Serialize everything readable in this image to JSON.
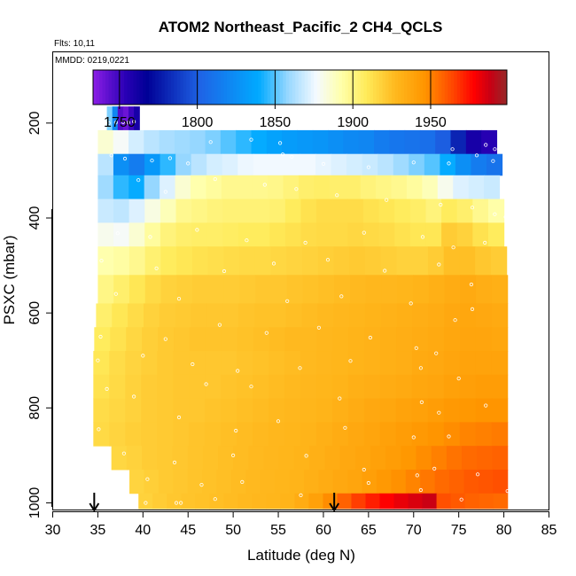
{
  "chart_data": {
    "type": "heatmap",
    "title": "ATOM2 Northeast_Pacific_2 CH4_QCLS",
    "info": {
      "flights": "Flts: 10,11",
      "dates": "MMDD: 0219,0221"
    },
    "xlabel": "Latitude (deg N)",
    "ylabel": "PSXC (mbar)",
    "xlim": [
      30,
      85
    ],
    "ylim": [
      1015,
      50
    ],
    "x_ticks": [
      "30",
      "35",
      "40",
      "45",
      "50",
      "55",
      "60",
      "65",
      "70",
      "75",
      "80",
      "85"
    ],
    "y_ticks": [
      "200",
      "400",
      "600",
      "800",
      "1000"
    ],
    "colorbar": {
      "range": [
        1733,
        1999
      ],
      "ticks": [
        "1750",
        "1800",
        "1850",
        "1900",
        "1950"
      ]
    },
    "markers": [
      {
        "latitude": 34.6,
        "label": "down-arrow"
      },
      {
        "latitude": 61.2,
        "label": "down-arrow"
      }
    ],
    "layers": [
      {
        "p_top": 165,
        "p_bot": 215,
        "lat_min": 36,
        "lat_max": 39.6,
        "values": [
          1855,
          1820,
          1745,
          1740,
          1750,
          1760
        ]
      },
      {
        "p_top": 215,
        "p_bot": 265,
        "lat_min": 35,
        "lat_max": 79.2,
        "values": [
          1885,
          1878,
          1870,
          1865,
          1862,
          1860,
          1858,
          1855,
          1850,
          1845,
          1840,
          1835,
          1832,
          1830,
          1828,
          1825,
          1822,
          1820,
          1815,
          1812,
          1810,
          1808,
          1800,
          1780,
          1760,
          1755
        ]
      },
      {
        "p_top": 265,
        "p_bot": 310,
        "lat_min": 35,
        "lat_max": 79.8,
        "values": [
          1865,
          1825,
          1815,
          1830,
          1845,
          1858,
          1865,
          1870,
          1872,
          1875,
          1876,
          1876,
          1876,
          1876,
          1874,
          1872,
          1870,
          1868,
          1865,
          1860,
          1855,
          1850,
          1840,
          1825,
          1815,
          1810
        ]
      },
      {
        "p_top": 310,
        "p_bot": 360,
        "lat_min": 35,
        "lat_max": 79.5,
        "values": [
          1860,
          1845,
          1840,
          1858,
          1872,
          1885,
          1892,
          1895,
          1898,
          1898,
          1898,
          1899,
          1902,
          1905,
          1906,
          1905,
          1905,
          1902,
          1900,
          1898,
          1895,
          1890,
          1880,
          1872,
          1870,
          1868
        ]
      },
      {
        "p_top": 360,
        "p_bot": 410,
        "lat_min": 35,
        "lat_max": 80,
        "values": [
          1868,
          1866,
          1872,
          1882,
          1890,
          1898,
          1900,
          1902,
          1903,
          1903,
          1903,
          1904,
          1908,
          1912,
          1914,
          1914,
          1914,
          1912,
          1910,
          1908,
          1906,
          1902,
          1908,
          1905,
          1898,
          1893
        ]
      },
      {
        "p_top": 410,
        "p_bot": 460,
        "lat_min": 35,
        "lat_max": 80,
        "values": [
          1880,
          1878,
          1885,
          1895,
          1902,
          1905,
          1906,
          1906,
          1907,
          1908,
          1908,
          1910,
          1912,
          1914,
          1915,
          1915,
          1916,
          1915,
          1914,
          1912,
          1910,
          1910,
          1920,
          1918,
          1912,
          1908
        ]
      },
      {
        "p_top": 460,
        "p_bot": 520,
        "lat_min": 35,
        "lat_max": 80.3,
        "values": [
          1892,
          1894,
          1898,
          1904,
          1908,
          1910,
          1912,
          1913,
          1914,
          1915,
          1915,
          1916,
          1917,
          1918,
          1919,
          1920,
          1921,
          1920,
          1919,
          1918,
          1918,
          1920,
          1925,
          1925,
          1922,
          1920
        ]
      },
      {
        "p_top": 520,
        "p_bot": 580,
        "lat_min": 35,
        "lat_max": 80.4,
        "values": [
          1900,
          1905,
          1910,
          1915,
          1918,
          1919,
          1920,
          1920,
          1920,
          1921,
          1922,
          1922,
          1923,
          1924,
          1925,
          1926,
          1927,
          1928,
          1928,
          1929,
          1930,
          1932,
          1934,
          1935,
          1933,
          1932
        ]
      },
      {
        "p_top": 580,
        "p_bot": 630,
        "lat_min": 34.8,
        "lat_max": 80.4,
        "values": [
          1905,
          1910,
          1914,
          1918,
          1920,
          1921,
          1922,
          1922,
          1922,
          1923,
          1924,
          1924,
          1925,
          1926,
          1927,
          1928,
          1929,
          1930,
          1931,
          1932,
          1933,
          1934,
          1936,
          1937,
          1936,
          1935
        ]
      },
      {
        "p_top": 630,
        "p_bot": 680,
        "lat_min": 34.6,
        "lat_max": 80.4,
        "values": [
          1908,
          1912,
          1916,
          1919,
          1921,
          1922,
          1923,
          1923,
          1923,
          1924,
          1925,
          1926,
          1927,
          1927,
          1928,
          1929,
          1930,
          1931,
          1932,
          1933,
          1934,
          1935,
          1937,
          1938,
          1938,
          1937
        ]
      },
      {
        "p_top": 680,
        "p_bot": 730,
        "lat_min": 34.5,
        "lat_max": 80.4,
        "values": [
          1910,
          1914,
          1917,
          1919,
          1921,
          1922,
          1922,
          1922,
          1922,
          1923,
          1924,
          1925,
          1926,
          1927,
          1928,
          1929,
          1930,
          1931,
          1932,
          1933,
          1935,
          1936,
          1938,
          1939,
          1939,
          1939
        ]
      },
      {
        "p_top": 730,
        "p_bot": 780,
        "lat_min": 34.5,
        "lat_max": 80.4,
        "values": [
          1912,
          1915,
          1918,
          1920,
          1921,
          1922,
          1922,
          1922,
          1923,
          1924,
          1925,
          1926,
          1927,
          1928,
          1929,
          1930,
          1932,
          1933,
          1934,
          1935,
          1937,
          1938,
          1940,
          1941,
          1942,
          1942
        ]
      },
      {
        "p_top": 780,
        "p_bot": 830,
        "lat_min": 34.5,
        "lat_max": 80.4,
        "values": [
          1914,
          1916,
          1918,
          1920,
          1921,
          1922,
          1922,
          1923,
          1924,
          1925,
          1926,
          1927,
          1928,
          1929,
          1930,
          1932,
          1934,
          1936,
          1937,
          1939,
          1940,
          1942,
          1944,
          1945,
          1946,
          1946
        ]
      },
      {
        "p_top": 830,
        "p_bot": 880,
        "lat_min": 34.5,
        "lat_max": 80.4,
        "values": [
          1915,
          1917,
          1919,
          1920,
          1921,
          1922,
          1923,
          1924,
          1925,
          1926,
          1927,
          1928,
          1929,
          1930,
          1932,
          1934,
          1936,
          1938,
          1940,
          1942,
          1944,
          1946,
          1948,
          1950,
          1951,
          1952
        ]
      },
      {
        "p_top": 880,
        "p_bot": 930,
        "lat_min": 36.5,
        "lat_max": 80.4,
        "values": [
          1916,
          1918,
          1920,
          1921,
          1922,
          1923,
          1924,
          1925,
          1926,
          1927,
          1928,
          1929,
          1930,
          1932,
          1934,
          1936,
          1938,
          1940,
          1942,
          1945,
          1948,
          1951,
          1954,
          1956,
          1957,
          1958
        ]
      },
      {
        "p_top": 930,
        "p_bot": 980,
        "lat_min": 38.5,
        "lat_max": 80.4,
        "values": [
          1917,
          1919,
          1921,
          1922,
          1923,
          1924,
          1925,
          1926,
          1927,
          1928,
          1929,
          1930,
          1932,
          1934,
          1936,
          1938,
          1941,
          1944,
          1947,
          1950,
          1953,
          1956,
          1958,
          1960,
          1961,
          1962
        ]
      },
      {
        "p_top": 980,
        "p_bot": 1012,
        "lat_min": 39.5,
        "lat_max": 80.4,
        "values": [
          1918,
          1920,
          1922,
          1923,
          1924,
          1925,
          1926,
          1927,
          1928,
          1929,
          1930,
          1934,
          1940,
          1948,
          1958,
          1966,
          1972,
          1978,
          1982,
          1985,
          1988,
          1962,
          1960,
          1958,
          1957,
          1956
        ]
      }
    ],
    "observations": [
      [
        36.2,
        200
      ],
      [
        37.0,
        199
      ],
      [
        37.8,
        198
      ],
      [
        38.4,
        199
      ],
      [
        39.0,
        197
      ],
      [
        47.5,
        240
      ],
      [
        52.0,
        235
      ],
      [
        55.2,
        242
      ],
      [
        74.3,
        255
      ],
      [
        78.0,
        246
      ],
      [
        79.0,
        255
      ],
      [
        36.5,
        268
      ],
      [
        38.0,
        275
      ],
      [
        41.0,
        279
      ],
      [
        43.0,
        274
      ],
      [
        45.0,
        285
      ],
      [
        55.5,
        266
      ],
      [
        56.5,
        271
      ],
      [
        60.0,
        286
      ],
      [
        65.0,
        293
      ],
      [
        70.0,
        283
      ],
      [
        73.9,
        285
      ],
      [
        77.0,
        268
      ],
      [
        78.8,
        280
      ],
      [
        39.5,
        320
      ],
      [
        42.5,
        345
      ],
      [
        48.0,
        318
      ],
      [
        53.5,
        330
      ],
      [
        57.0,
        339
      ],
      [
        61.5,
        352
      ],
      [
        67.0,
        362
      ],
      [
        73.0,
        372
      ],
      [
        76.5,
        378
      ],
      [
        79.0,
        392
      ],
      [
        80.2,
        398
      ],
      [
        37.2,
        432
      ],
      [
        40.8,
        440
      ],
      [
        46.0,
        425
      ],
      [
        51.5,
        447
      ],
      [
        58.0,
        452
      ],
      [
        64.5,
        431
      ],
      [
        71.0,
        440
      ],
      [
        74.4,
        462
      ],
      [
        77.9,
        452
      ],
      [
        80.4,
        455
      ],
      [
        35.4,
        490
      ],
      [
        41.5,
        506
      ],
      [
        49.0,
        512
      ],
      [
        54.5,
        496
      ],
      [
        60.5,
        488
      ],
      [
        66.8,
        511
      ],
      [
        72.8,
        498
      ],
      [
        76.4,
        540
      ],
      [
        37.0,
        560
      ],
      [
        44.0,
        570
      ],
      [
        56.0,
        575
      ],
      [
        62.0,
        565
      ],
      [
        69.7,
        580
      ],
      [
        74.6,
        615
      ],
      [
        76.5,
        592
      ],
      [
        35.3,
        650
      ],
      [
        42.5,
        655
      ],
      [
        48.5,
        625
      ],
      [
        53.7,
        642
      ],
      [
        59.5,
        631
      ],
      [
        65.2,
        652
      ],
      [
        70.3,
        674
      ],
      [
        72.5,
        685
      ],
      [
        35.0,
        700
      ],
      [
        40.0,
        690
      ],
      [
        45.5,
        708
      ],
      [
        50.5,
        722
      ],
      [
        57.4,
        716
      ],
      [
        63.0,
        701
      ],
      [
        70.8,
        716
      ],
      [
        75.0,
        738
      ],
      [
        36.0,
        760
      ],
      [
        39.0,
        776
      ],
      [
        47.0,
        750
      ],
      [
        52.0,
        755
      ],
      [
        61.8,
        780
      ],
      [
        70.9,
        788
      ],
      [
        72.8,
        810
      ],
      [
        78.0,
        795
      ],
      [
        35.1,
        845
      ],
      [
        44.0,
        820
      ],
      [
        50.3,
        848
      ],
      [
        55.0,
        828
      ],
      [
        62.4,
        842
      ],
      [
        70.0,
        862
      ],
      [
        73.9,
        860
      ],
      [
        37.9,
        896
      ],
      [
        43.5,
        915
      ],
      [
        50.0,
        900
      ],
      [
        58.1,
        901
      ],
      [
        64.5,
        930
      ],
      [
        70.4,
        942
      ],
      [
        72.3,
        928
      ],
      [
        77.1,
        940
      ],
      [
        40.5,
        950
      ],
      [
        46.5,
        962
      ],
      [
        51.0,
        956
      ],
      [
        57.5,
        984
      ],
      [
        65.0,
        958
      ],
      [
        70.8,
        973
      ],
      [
        75.3,
        993
      ],
      [
        80.4,
        975
      ],
      [
        40.3,
        1000
      ],
      [
        43.7,
        1000
      ],
      [
        44.2,
        1000
      ],
      [
        48.0,
        992
      ]
    ]
  }
}
